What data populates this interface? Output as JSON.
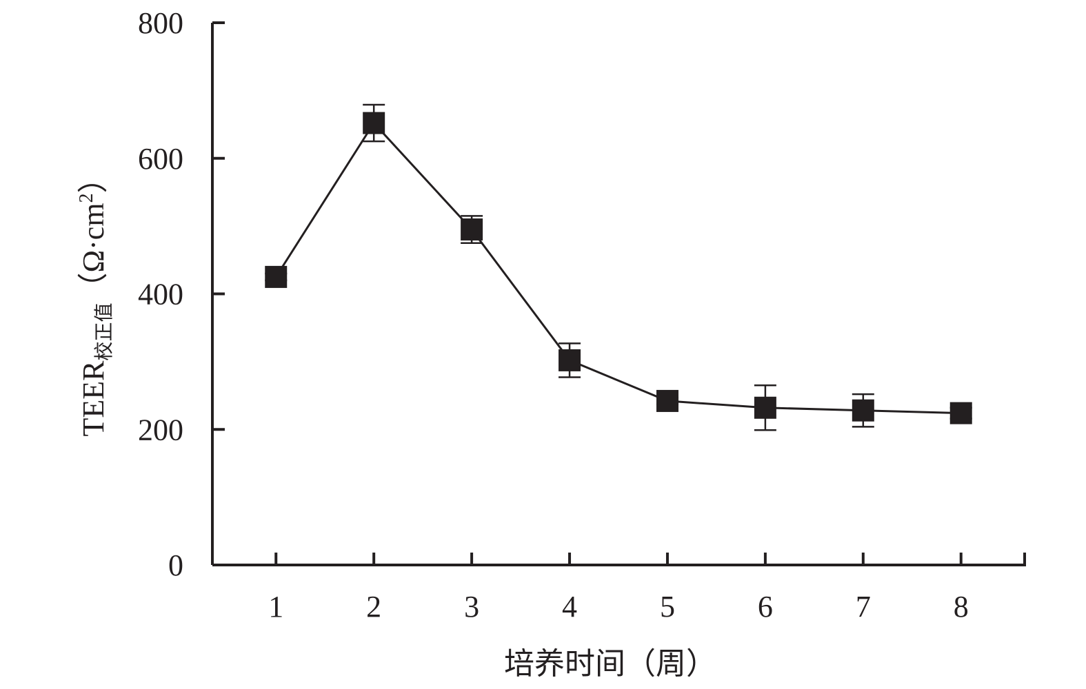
{
  "chart_data": {
    "type": "line",
    "xlabel": "培养时间（周）",
    "ylabel_main": "TEER",
    "ylabel_sub": "校正值",
    "ylabel_unit_pre": "（Ω·cm",
    "ylabel_unit_sup": "2",
    "ylabel_unit_post": "）",
    "x": [
      1,
      2,
      3,
      4,
      5,
      6,
      7,
      8
    ],
    "x_tick_labels": [
      "1",
      "2",
      "3",
      "4",
      "5",
      "6",
      "7",
      "8"
    ],
    "y_tick_labels": [
      "0",
      "200",
      "400",
      "600",
      "800"
    ],
    "y_ticks": [
      0,
      200,
      400,
      600,
      800
    ],
    "ylim": [
      0,
      800
    ],
    "xlim": [
      0.35,
      8.65
    ],
    "grid": false,
    "series": [
      {
        "values": [
          425,
          652,
          495,
          302,
          242,
          232,
          228,
          224
        ],
        "errors": [
          5,
          27,
          20,
          25,
          5,
          33,
          24,
          8
        ],
        "marker": "square",
        "color": "#231f20"
      }
    ]
  }
}
